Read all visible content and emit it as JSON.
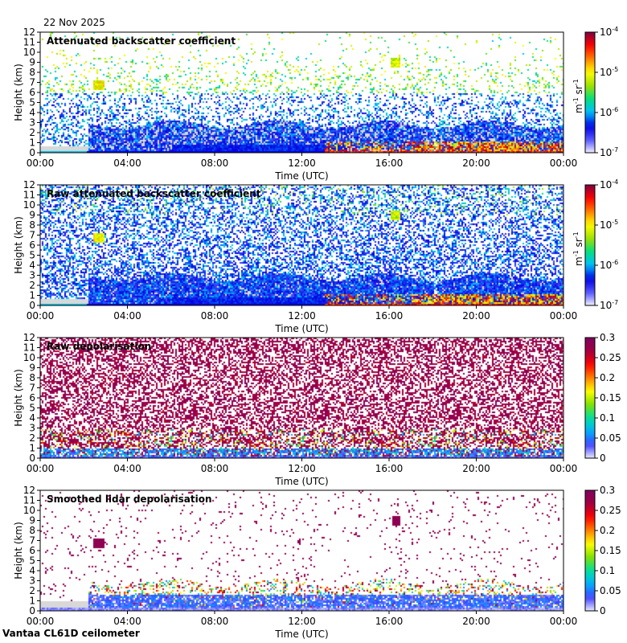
{
  "date": "22 Nov 2025",
  "footer": "Vantaa CL61D ceilometer",
  "colors": {
    "frame": "#000000",
    "clear_sky": "#d8d8d8",
    "backscatter_scale": [
      "#f0f0ff",
      "#5050ff",
      "#0000e0",
      "#00c0ff",
      "#00e080",
      "#a0e000",
      "#ffff00",
      "#ff8000",
      "#ff0000",
      "#800040"
    ],
    "depol_scale": [
      "#e8eaff",
      "#4040ff",
      "#00b0ff",
      "#00e0a0",
      "#80e000",
      "#ffff00",
      "#ff8000",
      "#ff0000",
      "#a00040",
      "#800060"
    ]
  },
  "chart_data": [
    {
      "type": "heatmap",
      "title": "Attenuated backscatter coefficient",
      "xlabel": "Time (UTC)",
      "ylabel": "Height (km)",
      "x_ticks": [
        "00:00",
        "04:00",
        "08:00",
        "12:00",
        "16:00",
        "20:00",
        "00:00"
      ],
      "xlim_hours": [
        0,
        24
      ],
      "y_ticks": [
        "0",
        "1",
        "2",
        "3",
        "4",
        "5",
        "6",
        "7",
        "8",
        "9",
        "10",
        "11",
        "12"
      ],
      "ylim_km": [
        0,
        12
      ],
      "colorbar": {
        "scale": "log",
        "ticks": [
          {
            "base": "10",
            "exp": "-7"
          },
          {
            "base": "10",
            "exp": "-6"
          },
          {
            "base": "10",
            "exp": "-5"
          },
          {
            "base": "10",
            "exp": "-4"
          }
        ],
        "label": {
          "m": "m",
          "m_exp": "-1",
          "sr": " sr",
          "sr_exp": "-1"
        }
      },
      "raw": false
    },
    {
      "type": "heatmap",
      "title": "Raw attenuated backscatter coefficient",
      "xlabel": "Time (UTC)",
      "ylabel": "Height (km)",
      "x_ticks": [
        "00:00",
        "04:00",
        "08:00",
        "12:00",
        "16:00",
        "20:00",
        "00:00"
      ],
      "xlim_hours": [
        0,
        24
      ],
      "y_ticks": [
        "0",
        "1",
        "2",
        "3",
        "4",
        "5",
        "6",
        "7",
        "8",
        "9",
        "10",
        "11",
        "12"
      ],
      "ylim_km": [
        0,
        12
      ],
      "colorbar": {
        "scale": "log",
        "ticks": [
          {
            "base": "10",
            "exp": "-7"
          },
          {
            "base": "10",
            "exp": "-6"
          },
          {
            "base": "10",
            "exp": "-5"
          },
          {
            "base": "10",
            "exp": "-4"
          }
        ],
        "label": {
          "m": "m",
          "m_exp": "-1",
          "sr": " sr",
          "sr_exp": "-1"
        }
      },
      "raw": true
    },
    {
      "type": "heatmap",
      "title": "Raw depolarisation",
      "xlabel": "Time (UTC)",
      "ylabel": "Height (km)",
      "x_ticks": [
        "00:00",
        "04:00",
        "08:00",
        "12:00",
        "16:00",
        "20:00",
        "00:00"
      ],
      "xlim_hours": [
        0,
        24
      ],
      "y_ticks": [
        "0",
        "1",
        "2",
        "3",
        "4",
        "5",
        "6",
        "7",
        "8",
        "9",
        "10",
        "11",
        "12"
      ],
      "ylim_km": [
        0,
        12
      ],
      "colorbar": {
        "scale": "linear",
        "range": [
          0,
          0.3
        ],
        "ticks": [
          "0",
          "0.05",
          "0.1",
          "0.15",
          "0.2",
          "0.25",
          "0.3"
        ]
      },
      "raw": true
    },
    {
      "type": "heatmap",
      "title": "Smoothed lidar depolarisation",
      "xlabel": "Time (UTC)",
      "ylabel": "Height (km)",
      "x_ticks": [
        "00:00",
        "04:00",
        "08:00",
        "12:00",
        "16:00",
        "20:00",
        "00:00"
      ],
      "xlim_hours": [
        0,
        24
      ],
      "y_ticks": [
        "0",
        "1",
        "2",
        "3",
        "4",
        "5",
        "6",
        "7",
        "8",
        "9",
        "10",
        "11",
        "12"
      ],
      "ylim_km": [
        0,
        12
      ],
      "colorbar": {
        "scale": "linear",
        "range": [
          0,
          0.3
        ],
        "ticks": [
          "0",
          "0.05",
          "0.1",
          "0.15",
          "0.2",
          "0.25",
          "0.3"
        ]
      },
      "raw": false
    }
  ]
}
